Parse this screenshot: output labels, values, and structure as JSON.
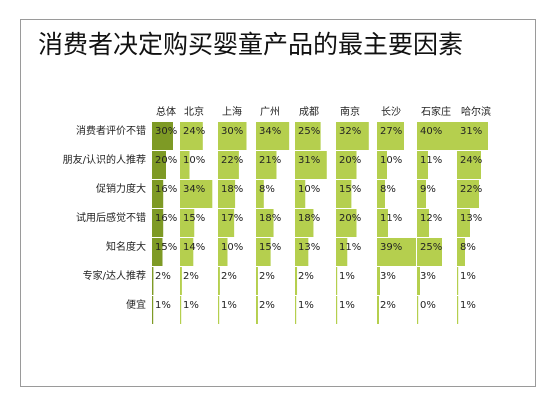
{
  "title": "消费者决定购买婴童产品的最主要因素",
  "chart_data": {
    "type": "table",
    "title": "消费者决定购买婴童产品的最主要因素",
    "columns": [
      "总体",
      "北京",
      "上海",
      "广州",
      "成都",
      "南京",
      "长沙",
      "石家庄",
      "哈尔滨"
    ],
    "rows": [
      {
        "label": "消费者评价不错",
        "values": [
          30,
          24,
          30,
          34,
          25,
          32,
          27,
          40,
          31
        ]
      },
      {
        "label": "朋友/认识的人推荐",
        "values": [
          20,
          10,
          22,
          21,
          31,
          20,
          10,
          11,
          24
        ]
      },
      {
        "label": "促销力度大",
        "values": [
          16,
          34,
          18,
          8,
          10,
          15,
          8,
          9,
          22
        ]
      },
      {
        "label": "试用后感觉不错",
        "values": [
          16,
          15,
          17,
          18,
          18,
          20,
          11,
          12,
          13
        ]
      },
      {
        "label": "知名度大",
        "values": [
          15,
          14,
          10,
          15,
          13,
          11,
          39,
          25,
          8
        ]
      },
      {
        "label": "专家/达人推荐",
        "values": [
          2,
          2,
          2,
          2,
          2,
          1,
          3,
          3,
          1
        ]
      },
      {
        "label": "便宜",
        "values": [
          1,
          1,
          1,
          2,
          1,
          1,
          2,
          0,
          1
        ]
      }
    ],
    "value_suffix": "%",
    "colors": {
      "bar_light": "#b5cf4e",
      "bar_dark": "#7e9a25",
      "text": "#222222",
      "frame": "#9a9a9a"
    }
  }
}
